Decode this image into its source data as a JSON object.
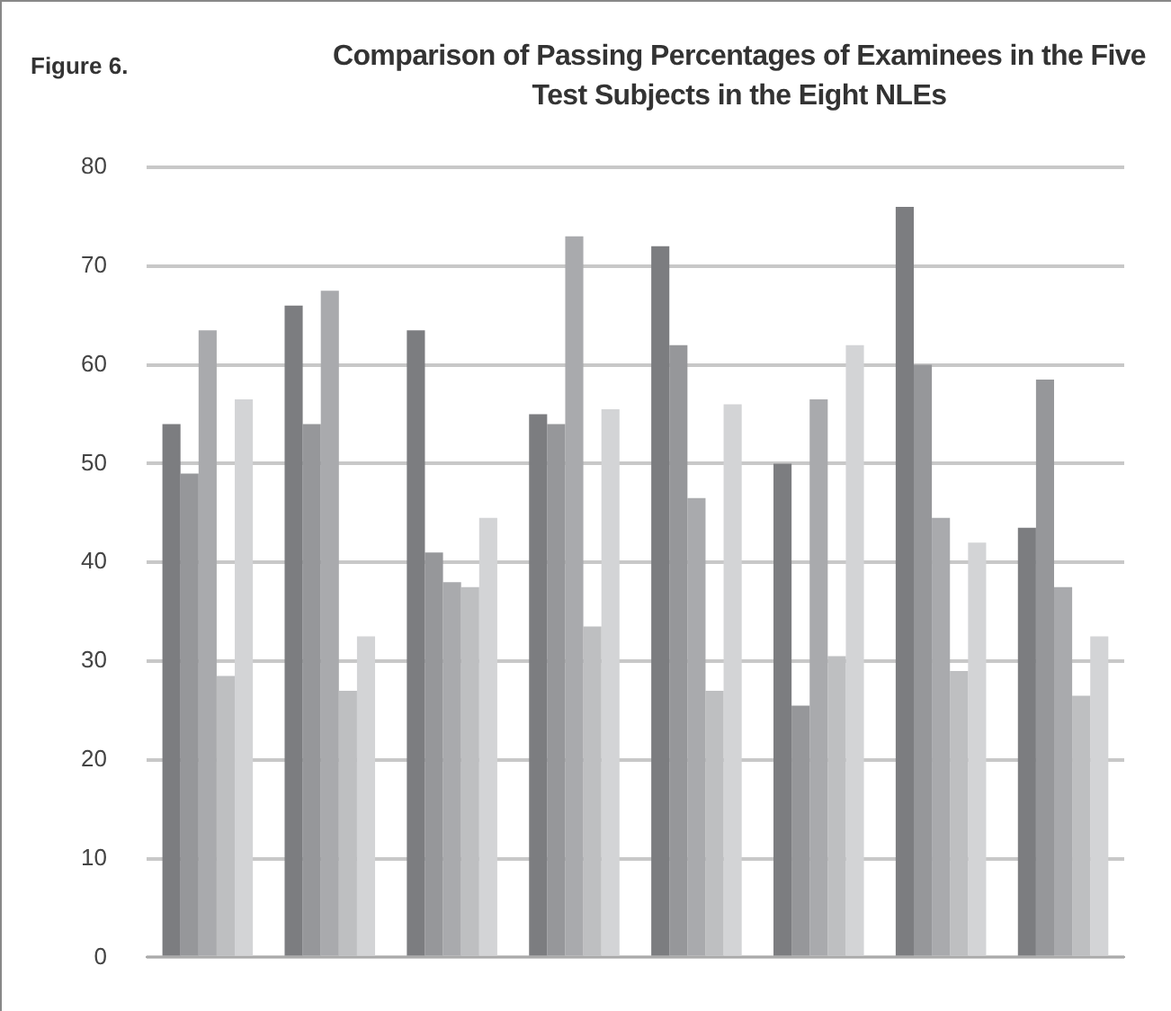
{
  "chart_data": {
    "type": "bar",
    "title": "Comparison of Passing Percentages of Examinees in the Five Test Subjects in the Eight NLEs",
    "annotations": [
      "Figure 6."
    ],
    "categories": [
      null,
      null,
      null,
      null,
      null,
      null,
      null,
      null
    ],
    "series": [
      {
        "color": "#7c7d80",
        "values": [
          54,
          66,
          63.5,
          55,
          72,
          50,
          76,
          43.5
        ]
      },
      {
        "color": "#96979a",
        "values": [
          49,
          54,
          41,
          54,
          62,
          25.5,
          60,
          58.5
        ]
      },
      {
        "color": "#a9aaad",
        "values": [
          63.5,
          67.5,
          38,
          73,
          46.5,
          56.5,
          44.5,
          37.5
        ]
      },
      {
        "color": "#bebfc1",
        "values": [
          28.5,
          27,
          37.5,
          33.5,
          27,
          30.5,
          29,
          26.5
        ]
      },
      {
        "color": "#d3d4d6",
        "values": [
          56.5,
          32.5,
          44.5,
          55.5,
          56,
          62,
          42,
          32.5
        ]
      }
    ],
    "ylim": [
      0,
      80
    ],
    "yticks": [
      0,
      10,
      20,
      30,
      40,
      50,
      60,
      70,
      80
    ],
    "grid": "y",
    "legend": false,
    "tick_labels": "y"
  }
}
